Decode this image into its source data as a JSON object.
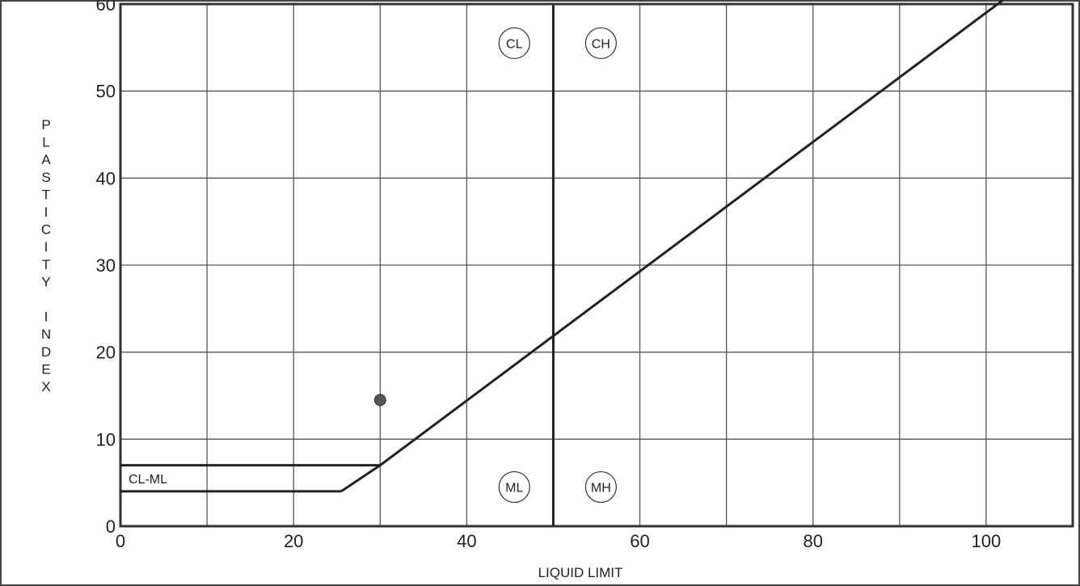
{
  "chart_data": {
    "type": "scatter",
    "title": "",
    "xlabel": "LIQUID LIMIT",
    "ylabel": "PLASTICITY INDEX",
    "xlim": [
      0,
      110
    ],
    "ylim": [
      0,
      60
    ],
    "grid": true,
    "x_ticks": [
      {
        "value": 0,
        "label": "0"
      },
      {
        "value": 20,
        "label": "20"
      },
      {
        "value": 40,
        "label": "40"
      },
      {
        "value": 60,
        "label": "60"
      },
      {
        "value": 80,
        "label": "80"
      },
      {
        "value": 100,
        "label": "100"
      }
    ],
    "y_ticks": [
      {
        "value": 0,
        "label": "0"
      },
      {
        "value": 10,
        "label": "10"
      },
      {
        "value": 20,
        "label": "20"
      },
      {
        "value": 30,
        "label": "30"
      },
      {
        "value": 40,
        "label": "40"
      },
      {
        "value": 50,
        "label": "50"
      },
      {
        "value": 60,
        "label": "60"
      }
    ],
    "x_grid_step": 10,
    "y_grid_step": 10,
    "a_line": [
      [
        25.5,
        4
      ],
      [
        30,
        7
      ],
      [
        102,
        60.5
      ]
    ],
    "cl_ml_band": {
      "label": "CL-ML",
      "lower": 4,
      "upper": 7,
      "x_start": 0
    },
    "divider_x": 50,
    "zones": [
      {
        "label": "CL",
        "x": 45.5,
        "y": 55.5
      },
      {
        "label": "CH",
        "x": 55.5,
        "y": 55.5
      },
      {
        "label": "ML",
        "x": 45.5,
        "y": 4.5
      },
      {
        "label": "MH",
        "x": 55.5,
        "y": 4.5
      }
    ],
    "points": [
      {
        "x": 30,
        "y": 14.5
      }
    ]
  }
}
